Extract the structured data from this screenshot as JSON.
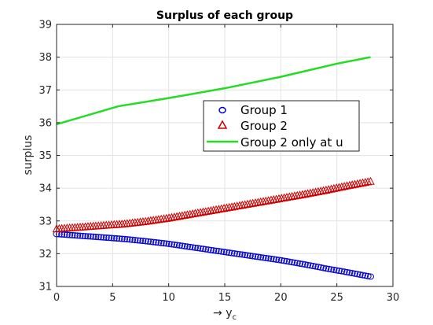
{
  "chart_data": {
    "type": "line",
    "title": "Surplus of each group",
    "xlabel_prefix": "→ y",
    "xlabel_sub": "c",
    "ylabel": "surplus",
    "xlim": [
      0,
      30
    ],
    "ylim": [
      31,
      39
    ],
    "xticks": [
      "0",
      "5",
      "10",
      "15",
      "20",
      "25",
      "30"
    ],
    "yticks": [
      "31",
      "32",
      "33",
      "34",
      "35",
      "36",
      "37",
      "38",
      "39"
    ],
    "grid": true,
    "legend_position": "center-right",
    "series": [
      {
        "name": "Group 1",
        "marker": "circle",
        "color": "#0000cc",
        "x": [
          0,
          2,
          4,
          6,
          8,
          10,
          12,
          14,
          16,
          18,
          20,
          22,
          24,
          26,
          28
        ],
        "y": [
          32.6,
          32.55,
          32.5,
          32.45,
          32.38,
          32.3,
          32.2,
          32.1,
          32.0,
          31.9,
          31.8,
          31.68,
          31.55,
          31.43,
          31.3
        ]
      },
      {
        "name": "Group 2",
        "marker": "triangle",
        "color": "#cc0000",
        "x": [
          0,
          2,
          4,
          6,
          8,
          10,
          12,
          14,
          16,
          18,
          20,
          22,
          24,
          26,
          28
        ],
        "y": [
          32.75,
          32.8,
          32.85,
          32.9,
          32.98,
          33.08,
          33.2,
          33.32,
          33.44,
          33.56,
          33.68,
          33.8,
          33.93,
          34.07,
          34.2
        ]
      },
      {
        "name": "Group 2 only at u",
        "marker": "none",
        "color": "#22dd22",
        "x": [
          0,
          5.5,
          10,
          15,
          20,
          25,
          28
        ],
        "y": [
          35.95,
          36.5,
          36.75,
          37.05,
          37.4,
          37.8,
          38.0
        ]
      }
    ]
  }
}
